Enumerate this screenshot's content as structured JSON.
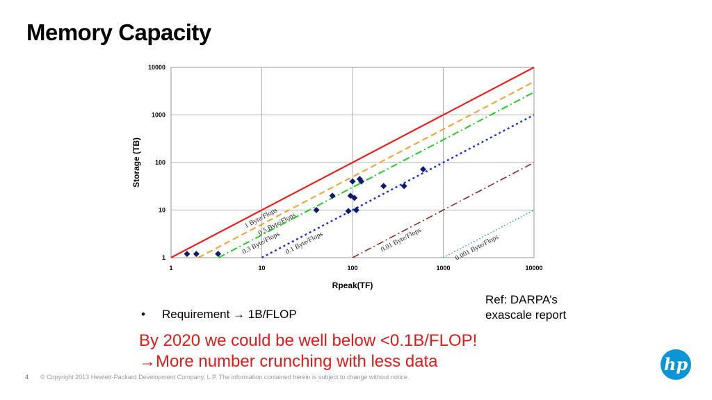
{
  "slide": {
    "title": "Memory Capacity",
    "bullet_marker": "•",
    "bullet_text": "Requirement → 1B/FLOP",
    "ref_line1": "Ref: DARPA’s",
    "ref_line2": "exascale report",
    "note_line1": "By 2020 we could be well below <0.1B/FLOP!",
    "note_line2": "→More number crunching with less data",
    "page_number": "4",
    "copyright": "© Copyright 2013 Hewlett-Packard Development Company, L.P.  The information contained herein is subject to change without notice.",
    "logo_text": "hp"
  },
  "colors": {
    "note": "#e21a1a",
    "line_1": "#e8201c",
    "line_05": "#f0a030",
    "line_03": "#22cc22",
    "line_01": "#1a30d8",
    "line_001": "#8b1a1a",
    "line_0001": "#2a9a8a",
    "points": "#0d1a6e",
    "logo": "#0a96d6"
  },
  "chart_data": {
    "type": "scatter",
    "xlabel": "Rpeak(TF)",
    "ylabel": "Storage (TB)",
    "xscale": "log",
    "yscale": "log",
    "xlim": [
      1,
      10000
    ],
    "ylim": [
      1,
      10000
    ],
    "xticks": [
      "1",
      "10",
      "100",
      "1000",
      "10000"
    ],
    "yticks": [
      "1",
      "10",
      "100",
      "1000",
      "10000"
    ],
    "grid": true,
    "reference_lines": [
      {
        "label": "1 Byte/Flops",
        "ratio": 1,
        "style": "solid"
      },
      {
        "label": "0.5 Byte/Flops",
        "ratio": 0.5,
        "style": "dashed"
      },
      {
        "label": "0.3 Byte/Flops",
        "ratio": 0.3,
        "style": "dashdot"
      },
      {
        "label": "0.1 Byte/Flops",
        "ratio": 0.1,
        "style": "dotted"
      },
      {
        "label": "0.01 Byte/Flops",
        "ratio": 0.01,
        "style": "dashdot"
      },
      {
        "label": "0.001 Byte/Flops",
        "ratio": 0.001,
        "style": "dotted"
      }
    ],
    "points": [
      {
        "x": 1.5,
        "y": 1.2
      },
      {
        "x": 1.9,
        "y": 1.2
      },
      {
        "x": 3.3,
        "y": 1.2
      },
      {
        "x": 40,
        "y": 10
      },
      {
        "x": 60,
        "y": 20
      },
      {
        "x": 90,
        "y": 9.5
      },
      {
        "x": 95,
        "y": 20
      },
      {
        "x": 100,
        "y": 40
      },
      {
        "x": 105,
        "y": 18
      },
      {
        "x": 110,
        "y": 10
      },
      {
        "x": 120,
        "y": 45
      },
      {
        "x": 125,
        "y": 40
      },
      {
        "x": 220,
        "y": 32
      },
      {
        "x": 370,
        "y": 32
      },
      {
        "x": 600,
        "y": 72
      }
    ]
  }
}
